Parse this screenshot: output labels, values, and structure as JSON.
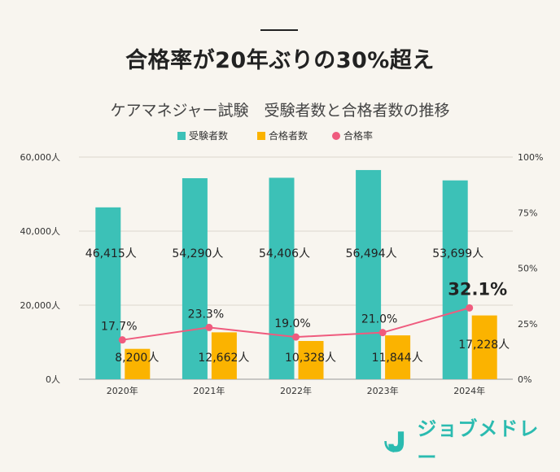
{
  "headline": "合格率が20年ぶりの30%超え",
  "brand": "ジョブメドレー",
  "colors": {
    "examinees": "#3cc1b7",
    "passers": "#fbb300",
    "rate": "#ef5b7e",
    "brand": "#2bbbb0"
  },
  "chart_data": {
    "type": "bar",
    "title": "ケアマネジャー試験　受験者数と合格者数の推移",
    "categories": [
      "2020年",
      "2021年",
      "2022年",
      "2023年",
      "2024年"
    ],
    "series": [
      {
        "name": "受験者数",
        "type": "bar",
        "values": [
          46415,
          54290,
          54406,
          56494,
          53699
        ],
        "labels": [
          "46,415人",
          "54,290人",
          "54,406人",
          "56,494人",
          "53,699人"
        ]
      },
      {
        "name": "合格者数",
        "type": "bar",
        "values": [
          8200,
          12662,
          10328,
          11844,
          17228
        ],
        "labels": [
          "8,200人",
          "12,662人",
          "10,328人",
          "11,844人",
          "17,228人"
        ]
      },
      {
        "name": "合格率",
        "type": "line",
        "axis": "right",
        "values": [
          17.7,
          23.3,
          19.0,
          21.0,
          32.1
        ],
        "labels": [
          "17.7%",
          "23.3%",
          "19.0%",
          "21.0%",
          "32.1%"
        ]
      }
    ],
    "y_left": {
      "lim": [
        0,
        60000
      ],
      "ticks": [
        0,
        20000,
        40000,
        60000
      ],
      "tick_labels": [
        "0人",
        "20,000人",
        "40,000人",
        "60,000人"
      ]
    },
    "y_right": {
      "lim": [
        0,
        100
      ],
      "ticks": [
        0,
        25,
        50,
        75,
        100
      ],
      "tick_labels": [
        "0%",
        "25%",
        "50%",
        "75%",
        "100%"
      ]
    },
    "grid": true,
    "legend": "top-center"
  }
}
